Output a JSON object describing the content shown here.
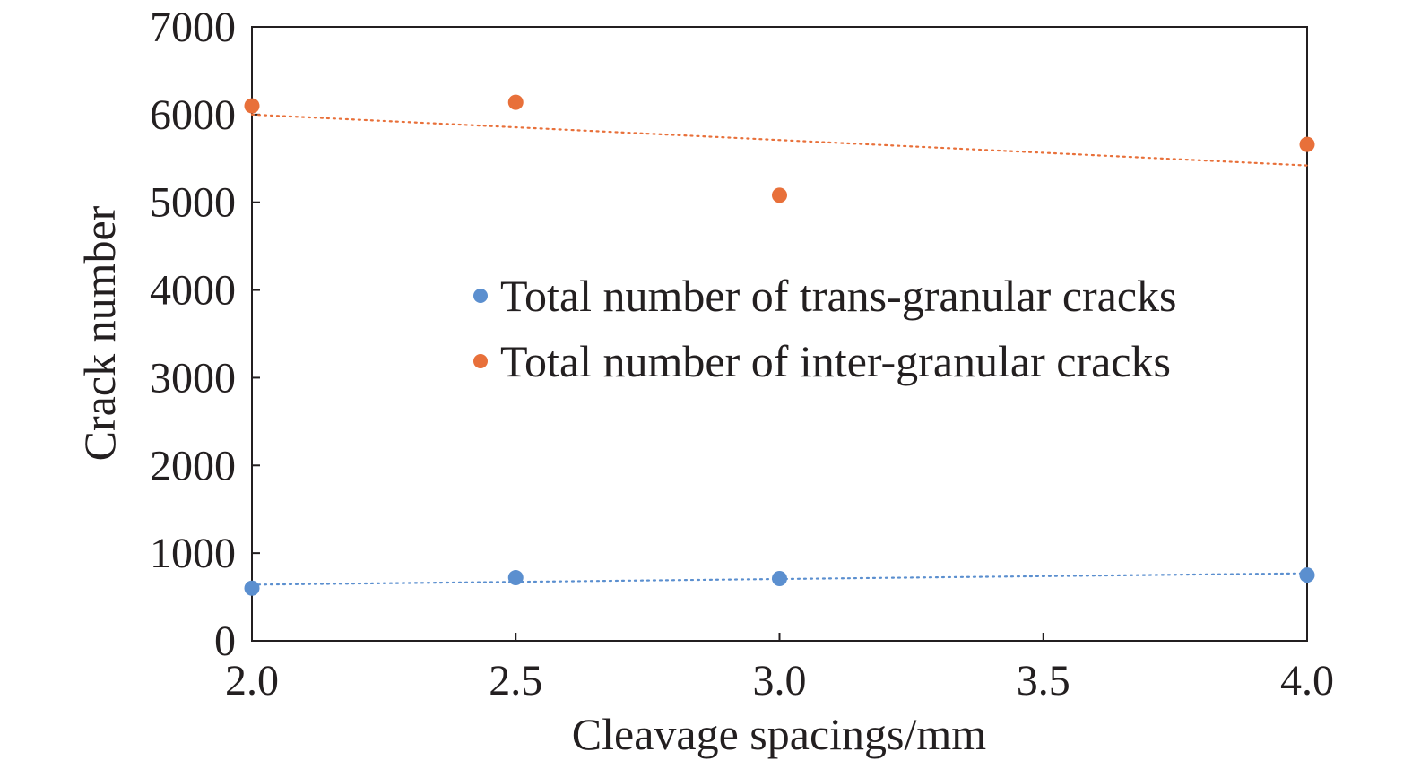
{
  "chart_data": {
    "type": "scatter",
    "title": "",
    "xlabel": "Cleavage spacings/mm",
    "ylabel": "Crack number",
    "xlim": [
      2.0,
      4.0
    ],
    "ylim": [
      0,
      7000
    ],
    "x_ticks": [
      "2.0",
      "2.5",
      "3.0",
      "3.5",
      "4.0"
    ],
    "y_ticks": [
      "0",
      "1000",
      "2000",
      "3000",
      "4000",
      "5000",
      "6000",
      "7000"
    ],
    "grid": false,
    "legend_position": "center-right",
    "series": [
      {
        "name": "Total number of trans-granular cracks",
        "color": "#5b8fcf",
        "x": [
          2.0,
          2.5,
          3.0,
          4.0
        ],
        "y": [
          600,
          720,
          710,
          750
        ],
        "trendline": {
          "type": "linear",
          "style": "dotted",
          "from": [
            2.0,
            640
          ],
          "to": [
            4.0,
            770
          ]
        }
      },
      {
        "name": "Total number of inter-granular cracks",
        "color": "#e8703a",
        "x": [
          2.0,
          2.5,
          3.0,
          4.0
        ],
        "y": [
          6100,
          6140,
          5080,
          5660
        ],
        "trendline": {
          "type": "linear",
          "style": "dotted",
          "from": [
            2.0,
            6000
          ],
          "to": [
            4.0,
            5420
          ]
        }
      }
    ]
  }
}
